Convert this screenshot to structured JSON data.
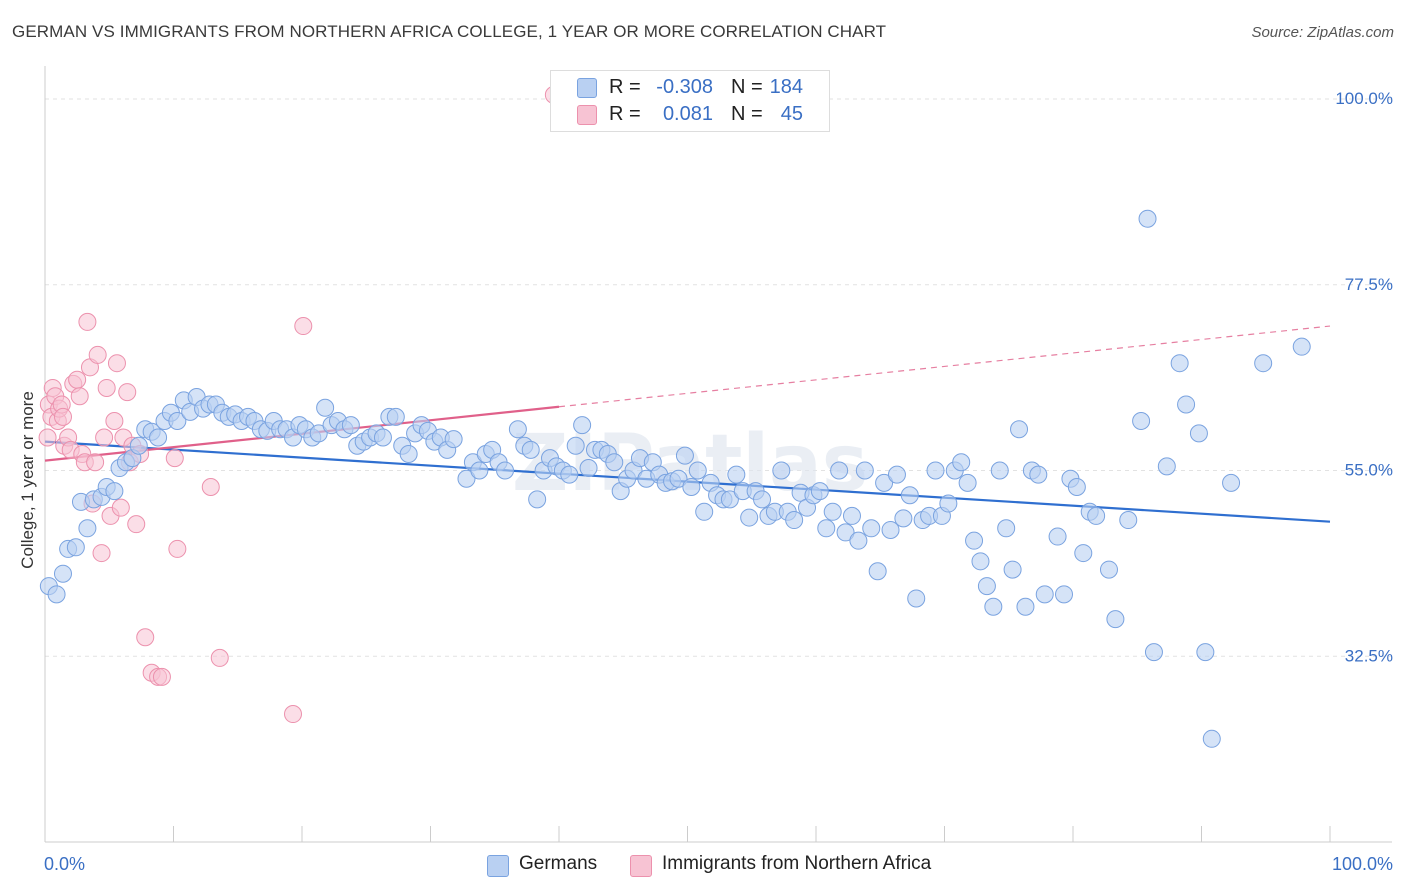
{
  "header": {
    "title": "GERMAN VS IMMIGRANTS FROM NORTHERN AFRICA COLLEGE, 1 YEAR OR MORE CORRELATION CHART",
    "source": "Source: ZipAtlas.com"
  },
  "legend": {
    "row1": {
      "r_label": "R =",
      "r_value": "-0.308",
      "n_label": "N =",
      "n_value": "184"
    },
    "row2": {
      "r_label": "R =",
      "r_value": "0.081",
      "n_label": "N =",
      "n_value": "45"
    }
  },
  "bottom_legend": {
    "series1": "Germans",
    "series2": "Immigrants from Northern Africa"
  },
  "colors": {
    "blue_fill": "#b9d0f2",
    "blue_stroke": "#7aa3e0",
    "blue_line": "#2f6fd0",
    "pink_fill": "#f7c3d3",
    "pink_stroke": "#ec91ad",
    "pink_line": "#e0608a",
    "axis_label": "#3a6fc4",
    "grid": "#e2e2e2"
  },
  "chart_data": {
    "type": "scatter",
    "title": "GERMAN VS IMMIGRANTS FROM NORTHERN AFRICA COLLEGE, 1 YEAR OR MORE CORRELATION CHART",
    "xlabel": "",
    "ylabel": "College, 1 year or more",
    "xlim": [
      0,
      100
    ],
    "ylim": [
      10,
      104
    ],
    "x_tick_labels": [
      {
        "value": 0,
        "label": "0.0%"
      },
      {
        "value": 100,
        "label": "100.0%"
      }
    ],
    "y_tick_labels": [
      {
        "value": 100,
        "label": "100.0%"
      },
      {
        "value": 77.5,
        "label": "77.5%"
      },
      {
        "value": 55,
        "label": "55.0%"
      },
      {
        "value": 32.5,
        "label": "32.5%"
      }
    ],
    "watermark": "ZIPatlas",
    "series": [
      {
        "name": "Germans",
        "color": "#b9d0f2",
        "R": -0.308,
        "N": 184,
        "trend": {
          "x": [
            0,
            100
          ],
          "y": [
            58.5,
            48.8
          ],
          "dashed_from": null
        },
        "points": [
          [
            0.3,
            41
          ],
          [
            0.9,
            40
          ],
          [
            1.4,
            42.5
          ],
          [
            1.8,
            45.5
          ],
          [
            2.4,
            45.7
          ],
          [
            2.8,
            51.2
          ],
          [
            3.3,
            48
          ],
          [
            3.8,
            51.5
          ],
          [
            4.4,
            51.8
          ],
          [
            4.8,
            53
          ],
          [
            5.4,
            52.5
          ],
          [
            5.8,
            55.3
          ],
          [
            6.3,
            56
          ],
          [
            6.8,
            56.5
          ],
          [
            7.3,
            58
          ],
          [
            7.8,
            60
          ],
          [
            8.3,
            59.7
          ],
          [
            8.8,
            59
          ],
          [
            9.3,
            61
          ],
          [
            9.8,
            62
          ],
          [
            10.3,
            61
          ],
          [
            10.8,
            63.5
          ],
          [
            11.3,
            62.1
          ],
          [
            11.8,
            63.9
          ],
          [
            12.3,
            62.5
          ],
          [
            12.8,
            63
          ],
          [
            13.3,
            63
          ],
          [
            13.8,
            62
          ],
          [
            14.3,
            61.5
          ],
          [
            14.8,
            61.8
          ],
          [
            15.3,
            61
          ],
          [
            15.8,
            61.5
          ],
          [
            16.3,
            61
          ],
          [
            16.8,
            60
          ],
          [
            17.3,
            59.8
          ],
          [
            17.8,
            61
          ],
          [
            18.3,
            60
          ],
          [
            18.8,
            60
          ],
          [
            19.3,
            59
          ],
          [
            19.8,
            60.5
          ],
          [
            20.3,
            60
          ],
          [
            20.8,
            59
          ],
          [
            21.3,
            59.5
          ],
          [
            21.8,
            62.6
          ],
          [
            22.3,
            60.5
          ],
          [
            22.8,
            61
          ],
          [
            23.3,
            60
          ],
          [
            23.8,
            60.5
          ],
          [
            24.3,
            58
          ],
          [
            24.8,
            58.5
          ],
          [
            25.3,
            59
          ],
          [
            25.8,
            59.5
          ],
          [
            26.3,
            59
          ],
          [
            26.8,
            61.5
          ],
          [
            27.3,
            61.5
          ],
          [
            27.8,
            58
          ],
          [
            28.3,
            57
          ],
          [
            28.8,
            59.5
          ],
          [
            29.3,
            60.5
          ],
          [
            29.8,
            59.8
          ],
          [
            30.3,
            58.5
          ],
          [
            30.8,
            59
          ],
          [
            31.3,
            57.5
          ],
          [
            31.8,
            58.8
          ],
          [
            32.8,
            54
          ],
          [
            33.3,
            56
          ],
          [
            33.8,
            55
          ],
          [
            34.3,
            57
          ],
          [
            34.8,
            57.5
          ],
          [
            35.3,
            56
          ],
          [
            35.8,
            55
          ],
          [
            36.8,
            60
          ],
          [
            37.3,
            58
          ],
          [
            37.8,
            57.5
          ],
          [
            38.3,
            51.5
          ],
          [
            38.8,
            55
          ],
          [
            39.3,
            56.5
          ],
          [
            39.8,
            55.5
          ],
          [
            40.3,
            55
          ],
          [
            40.8,
            54.5
          ],
          [
            41.3,
            58
          ],
          [
            41.8,
            60.5
          ],
          [
            42.3,
            55.3
          ],
          [
            42.8,
            57.5
          ],
          [
            43.3,
            57.5
          ],
          [
            43.8,
            57
          ],
          [
            44.3,
            56
          ],
          [
            44.8,
            52.5
          ],
          [
            45.3,
            54
          ],
          [
            45.8,
            55
          ],
          [
            46.3,
            56.5
          ],
          [
            46.8,
            54
          ],
          [
            47.3,
            56
          ],
          [
            47.8,
            54.5
          ],
          [
            48.3,
            53.5
          ],
          [
            48.8,
            53.7
          ],
          [
            49.3,
            54
          ],
          [
            49.8,
            56.8
          ],
          [
            50.3,
            53
          ],
          [
            50.8,
            55
          ],
          [
            51.3,
            50
          ],
          [
            51.8,
            53.5
          ],
          [
            52.3,
            52
          ],
          [
            52.8,
            51.5
          ],
          [
            53.3,
            51.5
          ],
          [
            53.8,
            54.5
          ],
          [
            54.3,
            52.5
          ],
          [
            54.8,
            49.3
          ],
          [
            55.3,
            52.5
          ],
          [
            55.8,
            51.5
          ],
          [
            56.3,
            49.5
          ],
          [
            56.8,
            50
          ],
          [
            57.3,
            55
          ],
          [
            57.8,
            50
          ],
          [
            58.3,
            49
          ],
          [
            58.8,
            52.3
          ],
          [
            59.3,
            50.5
          ],
          [
            59.8,
            52
          ],
          [
            60.3,
            52.5
          ],
          [
            60.8,
            48
          ],
          [
            61.3,
            50
          ],
          [
            61.8,
            55
          ],
          [
            62.3,
            47.5
          ],
          [
            62.8,
            49.5
          ],
          [
            63.3,
            46.5
          ],
          [
            63.8,
            55
          ],
          [
            64.3,
            48
          ],
          [
            64.8,
            42.8
          ],
          [
            65.3,
            53.5
          ],
          [
            65.8,
            47.8
          ],
          [
            66.3,
            54.5
          ],
          [
            66.8,
            49.2
          ],
          [
            67.3,
            52
          ],
          [
            67.8,
            39.5
          ],
          [
            68.3,
            49
          ],
          [
            68.8,
            49.5
          ],
          [
            69.3,
            55
          ],
          [
            69.8,
            49.5
          ],
          [
            70.3,
            51
          ],
          [
            70.8,
            55
          ],
          [
            71.3,
            56
          ],
          [
            71.8,
            53.5
          ],
          [
            72.3,
            46.5
          ],
          [
            72.8,
            44
          ],
          [
            73.3,
            41
          ],
          [
            73.8,
            38.5
          ],
          [
            74.3,
            55
          ],
          [
            74.8,
            48
          ],
          [
            75.3,
            43
          ],
          [
            75.8,
            60
          ],
          [
            76.3,
            38.5
          ],
          [
            76.8,
            55
          ],
          [
            77.3,
            54.5
          ],
          [
            77.8,
            40
          ],
          [
            78.8,
            47
          ],
          [
            79.3,
            40
          ],
          [
            79.8,
            54
          ],
          [
            80.3,
            53
          ],
          [
            80.8,
            45
          ],
          [
            81.3,
            50
          ],
          [
            81.8,
            49.5
          ],
          [
            82.8,
            43
          ],
          [
            83.3,
            37
          ],
          [
            84.3,
            49
          ],
          [
            85.3,
            61
          ],
          [
            85.8,
            85.5
          ],
          [
            86.3,
            33
          ],
          [
            87.3,
            55.5
          ],
          [
            88.3,
            68
          ],
          [
            88.8,
            63
          ],
          [
            89.8,
            59.5
          ],
          [
            90.3,
            33
          ],
          [
            90.8,
            22.5
          ],
          [
            92.3,
            53.5
          ],
          [
            94.8,
            68
          ],
          [
            97.8,
            70
          ]
        ]
      },
      {
        "name": "Immigrants from Northern Africa",
        "color": "#f7c3d3",
        "R": 0.081,
        "N": 45,
        "trend": {
          "x": [
            0,
            100
          ],
          "y": [
            56.2,
            72.5
          ],
          "dashed_from": 40
        },
        "points": [
          [
            0.2,
            59
          ],
          [
            0.3,
            63
          ],
          [
            0.5,
            61.5
          ],
          [
            0.6,
            65
          ],
          [
            0.8,
            64
          ],
          [
            1.0,
            61
          ],
          [
            1.1,
            62.5
          ],
          [
            1.3,
            63
          ],
          [
            1.4,
            61.5
          ],
          [
            1.5,
            58
          ],
          [
            1.8,
            59
          ],
          [
            2.0,
            57.5
          ],
          [
            2.2,
            65.5
          ],
          [
            2.5,
            66
          ],
          [
            2.7,
            64
          ],
          [
            2.9,
            57
          ],
          [
            3.1,
            56
          ],
          [
            3.3,
            73
          ],
          [
            3.5,
            67.5
          ],
          [
            3.7,
            51
          ],
          [
            3.9,
            56
          ],
          [
            4.1,
            69
          ],
          [
            4.4,
            45
          ],
          [
            4.6,
            59
          ],
          [
            4.8,
            65
          ],
          [
            5.1,
            49.5
          ],
          [
            5.4,
            61
          ],
          [
            5.6,
            68
          ],
          [
            5.9,
            50.5
          ],
          [
            6.1,
            59
          ],
          [
            6.4,
            64.5
          ],
          [
            6.6,
            56
          ],
          [
            6.8,
            58
          ],
          [
            7.1,
            48.5
          ],
          [
            7.4,
            57
          ],
          [
            7.8,
            34.8
          ],
          [
            8.3,
            30.5
          ],
          [
            8.8,
            30
          ],
          [
            9.1,
            30
          ],
          [
            10.1,
            56.5
          ],
          [
            10.3,
            45.5
          ],
          [
            12.9,
            53
          ],
          [
            13.6,
            32.3
          ],
          [
            19.3,
            25.5
          ],
          [
            20.1,
            72.5
          ],
          [
            39.6,
            100.5
          ]
        ]
      }
    ]
  }
}
